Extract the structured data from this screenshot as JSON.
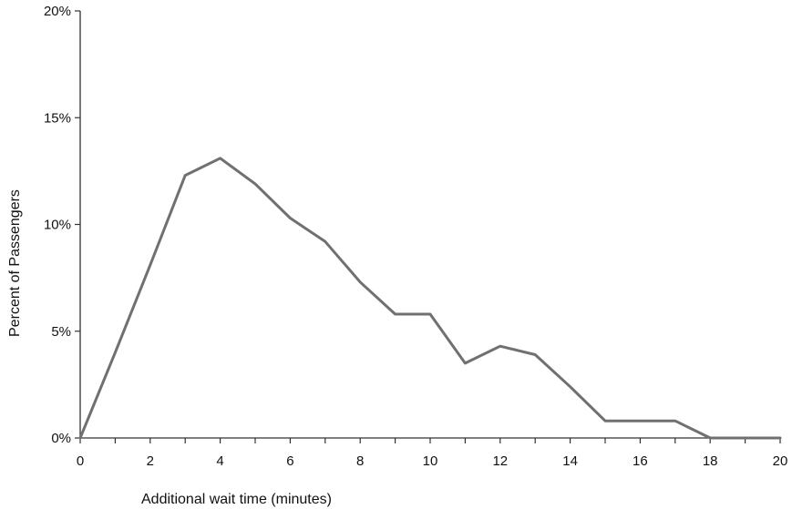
{
  "chart_data": {
    "type": "line",
    "title": "",
    "xlabel": "Additional wait time (minutes)",
    "ylabel": "Percent of Passengers",
    "xlim": [
      0,
      20
    ],
    "ylim": [
      0,
      20
    ],
    "x_ticks": [
      0,
      2,
      4,
      6,
      8,
      10,
      12,
      14,
      16,
      18,
      20
    ],
    "x_tick_labels": [
      "0",
      "2",
      "4",
      "6",
      "8",
      "10",
      "12",
      "14",
      "16",
      "18",
      "20"
    ],
    "y_ticks": [
      0,
      5,
      10,
      15,
      20
    ],
    "y_tick_labels": [
      "0%",
      "5%",
      "10%",
      "15%",
      "20%"
    ],
    "grid": false,
    "series": [
      {
        "x": [
          0,
          1,
          2,
          3,
          4,
          5,
          6,
          7,
          8,
          9,
          10,
          11,
          12,
          13,
          14,
          15,
          16,
          17,
          18,
          19,
          20
        ],
        "values": [
          0,
          4.0,
          8.1,
          12.3,
          13.1,
          11.9,
          10.3,
          9.2,
          7.3,
          5.8,
          5.8,
          3.5,
          4.3,
          3.9,
          2.4,
          0.8,
          0.8,
          0.8,
          0,
          0,
          0
        ]
      }
    ],
    "colors": {
      "line": "#707070",
      "axis": "#333333",
      "text": "#111111"
    }
  }
}
